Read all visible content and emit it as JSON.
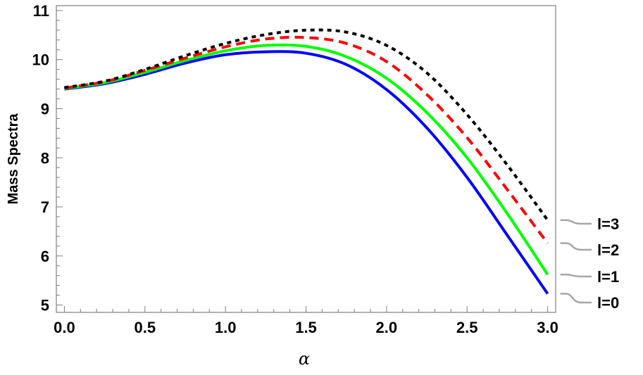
{
  "chart_data": {
    "type": "line",
    "title": "",
    "xlabel": "α",
    "ylabel": "Mass Spectra",
    "xlim": [
      -0.05,
      3.05
    ],
    "ylim": [
      4.85,
      11.1
    ],
    "x_ticks": [
      "0.0",
      "0.5",
      "1.0",
      "1.5",
      "2.0",
      "2.5",
      "3.0"
    ],
    "y_ticks": [
      "5",
      "6",
      "7",
      "8",
      "9",
      "10",
      "11"
    ],
    "grid": false,
    "legend_position": "right, beside line ends",
    "x": [
      0.0,
      0.25,
      0.5,
      0.75,
      1.0,
      1.25,
      1.5,
      1.75,
      2.0,
      2.25,
      2.5,
      2.75,
      3.0
    ],
    "series": [
      {
        "name": "l=3",
        "color": "#000000",
        "style": "dotted",
        "values": [
          9.43,
          9.56,
          9.8,
          10.08,
          10.33,
          10.51,
          10.6,
          10.56,
          10.29,
          9.73,
          8.88,
          7.85,
          6.73
        ]
      },
      {
        "name": "l=2",
        "color": "#ff0000",
        "style": "dashed",
        "values": [
          9.42,
          9.55,
          9.78,
          10.03,
          10.26,
          10.42,
          10.45,
          10.33,
          9.96,
          9.29,
          8.41,
          7.35,
          6.26
        ]
      },
      {
        "name": "l=1",
        "color": "#00ff00",
        "style": "solid",
        "values": [
          9.41,
          9.53,
          9.74,
          9.98,
          10.18,
          10.29,
          10.27,
          10.06,
          9.62,
          8.92,
          8.0,
          6.86,
          5.62
        ]
      },
      {
        "name": "l=0",
        "color": "#0000ff",
        "style": "solid",
        "values": [
          9.4,
          9.51,
          9.7,
          9.93,
          10.1,
          10.16,
          10.13,
          9.9,
          9.39,
          8.61,
          7.6,
          6.42,
          5.23
        ]
      }
    ],
    "legend_label_order": [
      "l=3",
      "l=2",
      "l=1",
      "l=0"
    ],
    "leader_line_color": "#a6a6a6"
  }
}
